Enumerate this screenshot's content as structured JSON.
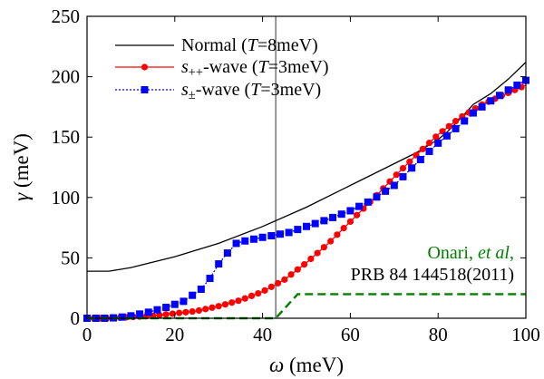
{
  "chart_data": {
    "type": "line",
    "xlabel": "ω (meV)",
    "ylabel": "γ (meV)",
    "xlim": [
      0,
      100
    ],
    "ylim": [
      0,
      250
    ],
    "xticks": [
      0,
      20,
      40,
      60,
      80,
      100
    ],
    "yticks": [
      0,
      50,
      100,
      150,
      200,
      250
    ],
    "grid": false,
    "legend_position": "top-left",
    "vline": {
      "x": 43,
      "color": "#555555"
    },
    "series": [
      {
        "name": "Normal (T=8meV)",
        "legend_parts": [
          {
            "t": "Normal (",
            "style": "normal"
          },
          {
            "t": "T",
            "style": "italic"
          },
          {
            "t": "=8meV)",
            "style": "normal"
          }
        ],
        "color": "#000000",
        "marker": "none",
        "dash": "solid",
        "points": [
          [
            0,
            39
          ],
          [
            5,
            39
          ],
          [
            10,
            42
          ],
          [
            20,
            51
          ],
          [
            30,
            62
          ],
          [
            40,
            76
          ],
          [
            50,
            92
          ],
          [
            60,
            110
          ],
          [
            70,
            128
          ],
          [
            75,
            137
          ],
          [
            80,
            148
          ],
          [
            82,
            154
          ],
          [
            85,
            165
          ],
          [
            88,
            177
          ],
          [
            92,
            186
          ],
          [
            96,
            198
          ],
          [
            100,
            212
          ]
        ]
      },
      {
        "name": "s++-wave (T=3meV)",
        "legend_parts": [
          {
            "t": "s",
            "style": "italic"
          },
          {
            "t": "++",
            "style": "sub"
          },
          {
            "t": "-wave (",
            "style": "normal"
          },
          {
            "t": "T",
            "style": "italic"
          },
          {
            "t": "=3meV)",
            "style": "normal"
          }
        ],
        "color": "#ff0000",
        "marker": "circle",
        "dash": "solid",
        "points": [
          [
            0,
            0
          ],
          [
            5,
            0
          ],
          [
            10,
            1
          ],
          [
            15,
            2
          ],
          [
            20,
            4
          ],
          [
            25,
            6
          ],
          [
            30,
            10
          ],
          [
            35,
            15
          ],
          [
            40,
            22
          ],
          [
            45,
            32
          ],
          [
            50,
            46
          ],
          [
            55,
            62
          ],
          [
            60,
            80
          ],
          [
            65,
            98
          ],
          [
            70,
            117
          ],
          [
            75,
            135
          ],
          [
            80,
            152
          ],
          [
            85,
            166
          ],
          [
            90,
            177
          ],
          [
            95,
            185
          ],
          [
            100,
            193
          ]
        ]
      },
      {
        "name": "s±-wave (T=3meV)",
        "legend_parts": [
          {
            "t": "s",
            "style": "italic"
          },
          {
            "t": "±",
            "style": "sub"
          },
          {
            "t": "-wave (",
            "style": "normal"
          },
          {
            "t": "T",
            "style": "italic"
          },
          {
            "t": "=3meV)",
            "style": "normal"
          }
        ],
        "color": "#0000ff",
        "marker": "square",
        "dash": "dotted",
        "points": [
          [
            0,
            0
          ],
          [
            5,
            0
          ],
          [
            8,
            1
          ],
          [
            10,
            2
          ],
          [
            14,
            5
          ],
          [
            18,
            9
          ],
          [
            22,
            14
          ],
          [
            26,
            24
          ],
          [
            28,
            33
          ],
          [
            30,
            45
          ],
          [
            32,
            54
          ],
          [
            34,
            62
          ],
          [
            36,
            64
          ],
          [
            40,
            67
          ],
          [
            43,
            69
          ],
          [
            46,
            71
          ],
          [
            50,
            76
          ],
          [
            55,
            82
          ],
          [
            60,
            89
          ],
          [
            65,
            98
          ],
          [
            70,
            110
          ],
          [
            75,
            128
          ],
          [
            80,
            145
          ],
          [
            85,
            160
          ],
          [
            88,
            170
          ],
          [
            92,
            180
          ],
          [
            96,
            189
          ],
          [
            100,
            197
          ]
        ]
      },
      {
        "name": "",
        "color": "#008000",
        "marker": "none",
        "dash": "dashed",
        "points": [
          [
            0,
            0
          ],
          [
            43,
            0
          ],
          [
            48,
            20
          ],
          [
            100,
            20
          ]
        ]
      }
    ],
    "annotation": {
      "lines": [
        "Onari, et al,",
        "PRB 84 144518(2011)"
      ],
      "color": "#008000",
      "line1_parts": [
        {
          "t": "Onari, ",
          "style": "normal"
        },
        {
          "t": "et al",
          "style": "italic"
        },
        {
          "t": ",",
          "style": "normal"
        }
      ]
    }
  }
}
